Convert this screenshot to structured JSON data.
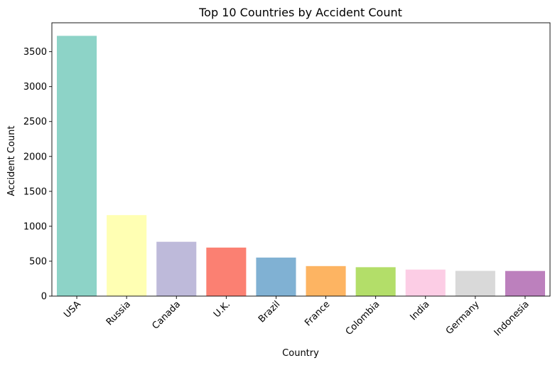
{
  "chart_data": {
    "type": "bar",
    "title": "Top 10 Countries by Accident Count",
    "xlabel": "Country",
    "ylabel": "Accident Count",
    "categories": [
      "USA",
      "Russia",
      "Canada",
      "U.K.",
      "Brazil",
      "France",
      "Colombia",
      "India",
      "Germany",
      "Indonesia"
    ],
    "values": [
      3727,
      1160,
      778,
      695,
      552,
      430,
      414,
      380,
      362,
      360
    ],
    "colors": [
      "#8dd3c7",
      "#ffffb3",
      "#bebada",
      "#fb8072",
      "#80b1d3",
      "#fdb462",
      "#b3de69",
      "#fccde5",
      "#d9d9d9",
      "#bc80bd"
    ],
    "yticks": [
      0,
      500,
      1000,
      1500,
      2000,
      2500,
      3000,
      3500
    ],
    "ylim": [
      0,
      3914
    ],
    "grid": false,
    "legend": "none"
  }
}
